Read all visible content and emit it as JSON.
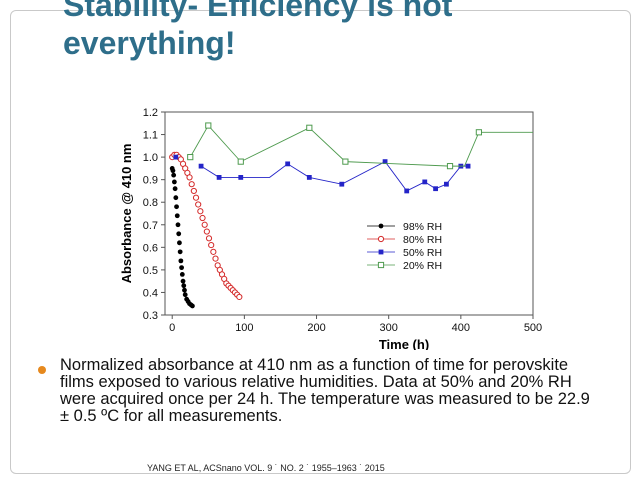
{
  "slide": {
    "title": "Stability- Efficiency is not everything!",
    "bullet": "Normalized absorbance at 410 nm as a function of time for perovskite films exposed to various relative humidities. Data at 50% and 20% RH were acquired once per 24 h. The temperature was measured to be 22.9 ± 0.5 ºC for all measurements.",
    "citation": "YANG ET AL, ACSnano VOL. 9 ˙ NO. 2 ˙ 1955–1963 ˙ 2015",
    "accent_color": "#e6891e",
    "title_color": "#2e6e8a"
  },
  "chart_data": {
    "type": "scatter",
    "xlabel": "Time (h)",
    "ylabel": "Absorbance @ 410 nm",
    "xlim": [
      -10,
      500
    ],
    "ylim": [
      0.3,
      1.2
    ],
    "xticks": [
      0,
      100,
      200,
      300,
      400,
      500
    ],
    "yticks": [
      0.3,
      0.4,
      0.5,
      0.6,
      0.7,
      0.8,
      0.9,
      1.0,
      1.1,
      1.2
    ],
    "legend_position": "right",
    "series": [
      {
        "name": "98% RH",
        "color": "#000000",
        "marker": "filled-circle",
        "x": [
          0,
          1,
          2,
          3,
          4,
          5,
          6,
          7,
          8,
          9,
          10,
          11,
          12,
          13,
          14,
          15,
          16,
          17,
          18,
          20,
          22,
          24,
          26,
          28
        ],
        "y": [
          0.95,
          0.94,
          0.92,
          0.89,
          0.86,
          0.82,
          0.78,
          0.74,
          0.7,
          0.66,
          0.62,
          0.58,
          0.54,
          0.51,
          0.48,
          0.45,
          0.43,
          0.41,
          0.39,
          0.37,
          0.36,
          0.35,
          0.345,
          0.34
        ]
      },
      {
        "name": "80% RH",
        "color": "#d42a2a",
        "marker": "open-circle",
        "x": [
          0,
          3,
          6,
          9,
          12,
          15,
          18,
          21,
          24,
          27,
          30,
          33,
          36,
          39,
          42,
          45,
          48,
          51,
          54,
          57,
          60,
          63,
          66,
          69,
          72,
          75,
          78,
          81,
          84,
          87,
          90,
          93
        ],
        "y": [
          1.0,
          1.01,
          1.01,
          1.0,
          0.99,
          0.97,
          0.95,
          0.93,
          0.91,
          0.88,
          0.85,
          0.82,
          0.79,
          0.76,
          0.73,
          0.7,
          0.67,
          0.64,
          0.61,
          0.58,
          0.55,
          0.52,
          0.5,
          0.48,
          0.46,
          0.44,
          0.43,
          0.42,
          0.41,
          0.4,
          0.39,
          0.38
        ]
      },
      {
        "name": "50% RH",
        "color": "#2424c8",
        "marker": "filled-square",
        "x": [
          5,
          40,
          65,
          95,
          160,
          190,
          235,
          295,
          325,
          350,
          365,
          380,
          400,
          410
        ],
        "y": [
          1.0,
          0.96,
          0.91,
          0.91,
          0.97,
          0.91,
          0.88,
          0.98,
          0.85,
          0.89,
          0.86,
          0.88,
          0.96,
          0.96
        ],
        "line": [
          [
            40,
            0.96
          ],
          [
            65,
            0.91
          ],
          [
            135,
            0.91
          ],
          [
            160,
            0.97
          ],
          [
            190,
            0.91
          ],
          [
            235,
            0.88
          ],
          [
            295,
            0.98
          ],
          [
            325,
            0.85
          ],
          [
            350,
            0.89
          ],
          [
            365,
            0.86
          ],
          [
            380,
            0.88
          ],
          [
            400,
            0.96
          ],
          [
            410,
            0.96
          ]
        ]
      },
      {
        "name": "20% RH",
        "color": "#4e9a4e",
        "marker": "open-square",
        "x": [
          25,
          50,
          95,
          190,
          240,
          385,
          425
        ],
        "y": [
          1.0,
          1.14,
          0.98,
          1.13,
          0.98,
          0.96,
          1.11
        ],
        "line": [
          [
            25,
            1.0
          ],
          [
            50,
            1.14
          ],
          [
            95,
            0.98
          ],
          [
            190,
            1.13
          ],
          [
            240,
            0.98
          ],
          [
            385,
            0.96
          ],
          [
            405,
            0.96
          ],
          [
            425,
            1.11
          ],
          [
            500,
            1.11
          ]
        ]
      }
    ]
  }
}
